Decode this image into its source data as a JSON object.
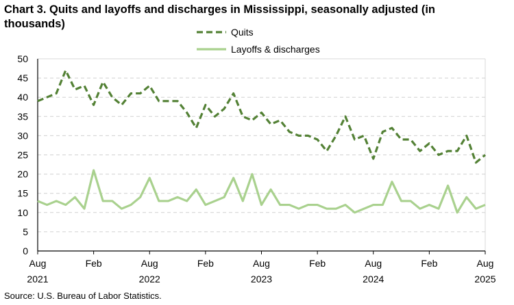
{
  "chart_data": {
    "type": "line",
    "title": "Chart 3. Quits and layoffs and discharges in Mississippi, seasonally adjusted (in thousands)",
    "source": "Source: U.S. Bureau of Labor Statistics.",
    "x": [
      "Aug 2021",
      "Sep 2021",
      "Oct 2021",
      "Nov 2021",
      "Dec 2021",
      "Jan 2022",
      "Feb 2022",
      "Mar 2022",
      "Apr 2022",
      "May 2022",
      "Jun 2022",
      "Jul 2022",
      "Aug 2022",
      "Sep 2022",
      "Oct 2022",
      "Nov 2022",
      "Dec 2022",
      "Jan 2023",
      "Feb 2023",
      "Mar 2023",
      "Apr 2023",
      "May 2023",
      "Jun 2023",
      "Jul 2023",
      "Aug 2023",
      "Sep 2023",
      "Oct 2023",
      "Nov 2023",
      "Dec 2023",
      "Jan 2024",
      "Feb 2024",
      "Mar 2024",
      "Apr 2024",
      "May 2024",
      "Jun 2024",
      "Jul 2024",
      "Aug 2024",
      "Sep 2024",
      "Oct 2024",
      "Nov 2024",
      "Dec 2024",
      "Jan 2025",
      "Feb 2025",
      "Mar 2025",
      "Apr 2025",
      "May 2025",
      "Jun 2025",
      "Jul 2025",
      "Aug 2025"
    ],
    "x_tick_labels": [
      {
        "month": "Aug",
        "year": "2021"
      },
      {
        "month": "Feb",
        "year": ""
      },
      {
        "month": "Aug",
        "year": "2022"
      },
      {
        "month": "Feb",
        "year": ""
      },
      {
        "month": "Aug",
        "year": "2023"
      },
      {
        "month": "Feb",
        "year": ""
      },
      {
        "month": "Aug",
        "year": "2024"
      },
      {
        "month": "Feb",
        "year": ""
      },
      {
        "month": "Aug",
        "year": "2025"
      }
    ],
    "y_ticks": [
      0,
      5,
      10,
      15,
      20,
      25,
      30,
      35,
      40,
      45,
      50
    ],
    "ylim": [
      0,
      50
    ],
    "grid": true,
    "legend_placement": "top-center",
    "series": [
      {
        "name": "Quits",
        "color": "#538135",
        "style": "dashed",
        "values": [
          39,
          40,
          41,
          47,
          42,
          43,
          38,
          44,
          40,
          38,
          41,
          41,
          43,
          39,
          39,
          39,
          36,
          32,
          38,
          35,
          37,
          41,
          35,
          34,
          36,
          33,
          34,
          31,
          30,
          30,
          29,
          26,
          30,
          35,
          29,
          30,
          24,
          31,
          32,
          29,
          29,
          26,
          28,
          25,
          26,
          26,
          30,
          23,
          25
        ]
      },
      {
        "name": "Layoffs & discharges",
        "color": "#a9d18e",
        "style": "solid",
        "values": [
          13,
          12,
          13,
          12,
          14,
          11,
          21,
          13,
          13,
          11,
          12,
          14,
          19,
          13,
          13,
          14,
          13,
          16,
          12,
          13,
          14,
          19,
          13,
          20,
          12,
          16,
          12,
          12,
          11,
          12,
          12,
          11,
          11,
          12,
          10,
          11,
          12,
          12,
          18,
          13,
          13,
          11,
          12,
          11,
          17,
          10,
          14,
          11,
          12
        ]
      }
    ]
  }
}
